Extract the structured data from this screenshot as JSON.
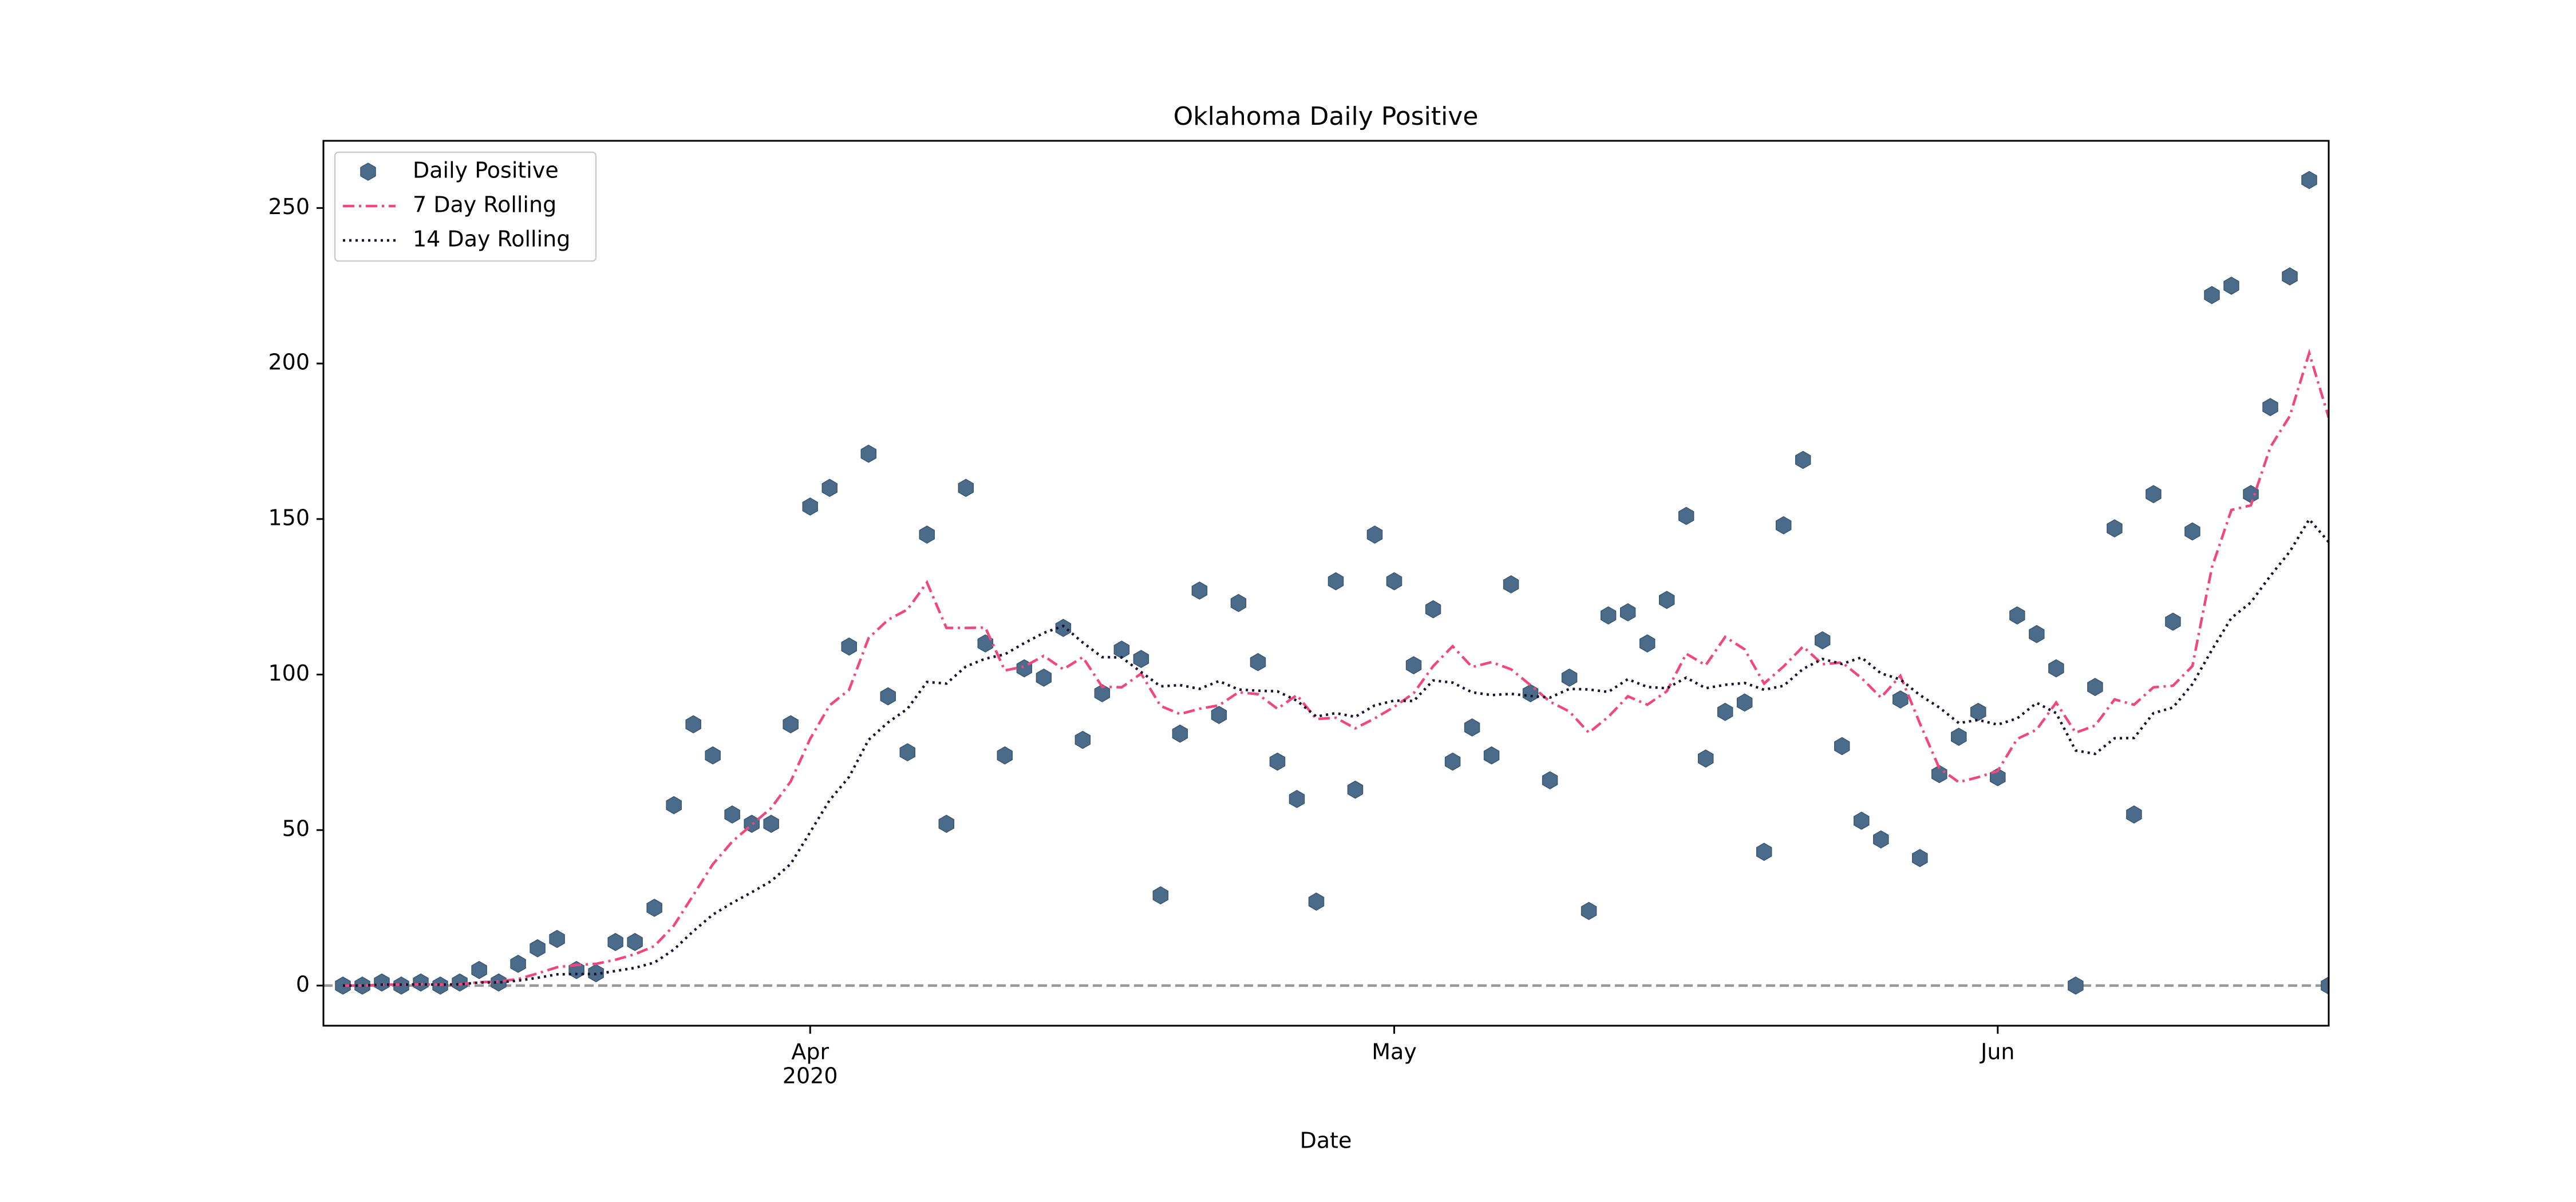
{
  "chart_data": {
    "type": "line",
    "title": "Oklahoma Daily Positive",
    "xlabel": "Date",
    "x": [
      "2020-03-08",
      "2020-03-09",
      "2020-03-10",
      "2020-03-11",
      "2020-03-12",
      "2020-03-13",
      "2020-03-14",
      "2020-03-15",
      "2020-03-16",
      "2020-03-17",
      "2020-03-18",
      "2020-03-19",
      "2020-03-20",
      "2020-03-21",
      "2020-03-22",
      "2020-03-23",
      "2020-03-24",
      "2020-03-25",
      "2020-03-26",
      "2020-03-27",
      "2020-03-28",
      "2020-03-29",
      "2020-03-30",
      "2020-03-31",
      "2020-04-01",
      "2020-04-02",
      "2020-04-03",
      "2020-04-04",
      "2020-04-05",
      "2020-04-06",
      "2020-04-07",
      "2020-04-08",
      "2020-04-09",
      "2020-04-10",
      "2020-04-11",
      "2020-04-12",
      "2020-04-13",
      "2020-04-14",
      "2020-04-15",
      "2020-04-16",
      "2020-04-17",
      "2020-04-18",
      "2020-04-19",
      "2020-04-20",
      "2020-04-21",
      "2020-04-22",
      "2020-04-23",
      "2020-04-24",
      "2020-04-25",
      "2020-04-26",
      "2020-04-27",
      "2020-04-28",
      "2020-04-29",
      "2020-04-30",
      "2020-05-01",
      "2020-05-02",
      "2020-05-03",
      "2020-05-04",
      "2020-05-05",
      "2020-05-06",
      "2020-05-07",
      "2020-05-08",
      "2020-05-09",
      "2020-05-10",
      "2020-05-11",
      "2020-05-12",
      "2020-05-13",
      "2020-05-14",
      "2020-05-15",
      "2020-05-16",
      "2020-05-17",
      "2020-05-18",
      "2020-05-19",
      "2020-05-20",
      "2020-05-21",
      "2020-05-22",
      "2020-05-23",
      "2020-05-24",
      "2020-05-25",
      "2020-05-26",
      "2020-05-27",
      "2020-05-28",
      "2020-05-29",
      "2020-05-30",
      "2020-05-31",
      "2020-06-01",
      "2020-06-02",
      "2020-06-03",
      "2020-06-04",
      "2020-06-05",
      "2020-06-06",
      "2020-06-07",
      "2020-06-08",
      "2020-06-09",
      "2020-06-10",
      "2020-06-11",
      "2020-06-12",
      "2020-06-13",
      "2020-06-14",
      "2020-06-15",
      "2020-06-16",
      "2020-06-17",
      "2020-06-18"
    ],
    "series": [
      {
        "name": "Daily Positive",
        "style": "markers",
        "color": "#4a6b8a",
        "values": [
          0,
          0,
          1,
          0,
          1,
          0,
          1,
          5,
          1,
          7,
          12,
          15,
          5,
          4,
          14,
          14,
          25,
          58,
          84,
          74,
          55,
          52,
          52,
          84,
          154,
          160,
          109,
          171,
          93,
          75,
          145,
          52,
          160,
          110,
          74,
          102,
          99,
          115,
          79,
          94,
          108,
          105,
          29,
          81,
          127,
          87,
          123,
          104,
          72,
          60,
          27,
          130,
          63,
          145,
          130,
          103,
          121,
          72,
          83,
          74,
          129,
          94,
          66,
          99,
          24,
          119,
          120,
          110,
          124,
          151,
          73,
          88,
          91,
          43,
          148,
          169,
          111,
          77,
          53,
          47,
          92,
          41,
          68,
          80,
          88,
          67,
          119,
          113,
          102,
          0,
          96,
          147,
          55,
          158,
          117,
          146,
          222,
          225,
          158,
          186,
          228,
          259,
          0
        ]
      },
      {
        "name": "7 Day Rolling",
        "style": "dashdot",
        "color": "#f0487c",
        "values": [
          0,
          0,
          0.3,
          0.3,
          0.4,
          0.3,
          0.4,
          1.1,
          1.3,
          2.1,
          3.9,
          5.9,
          6.6,
          7.0,
          8.3,
          10.1,
          12.7,
          19.3,
          29.1,
          39,
          46.3,
          51.7,
          57.1,
          65.6,
          79.3,
          90.1,
          95.1,
          111.7,
          117.6,
          120.9,
          129.6,
          115,
          115,
          115.1,
          101.3,
          102.6,
          106,
          101.7,
          105.6,
          96.1,
          95.9,
          100.3,
          89.9,
          87.3,
          89,
          90.1,
          94.3,
          93.7,
          89,
          93.4,
          85.7,
          86.1,
          82.7,
          85.9,
          89.6,
          94,
          102.7,
          109.1,
          102.4,
          104,
          101.7,
          96.6,
          91.3,
          88.1,
          81.3,
          86.4,
          93,
          90.3,
          94.6,
          106.7,
          103,
          112.1,
          108.1,
          97.1,
          102.6,
          109,
          103.3,
          103.9,
          98.9,
          92.6,
          99.6,
          84.3,
          69.9,
          65.4,
          67,
          69,
          79.3,
          82.3,
          91,
          81.3,
          83.6,
          92,
          90.3,
          95.9,
          96.4,
          102.7,
          134.4,
          152.9,
          154.4,
          173.1,
          183.1,
          203.4,
          182.6
        ]
      },
      {
        "name": "14 Day Rolling",
        "style": "dotted",
        "color": "#1c1230",
        "values": [
          0,
          0,
          0.3,
          0.3,
          0.4,
          0.3,
          0.4,
          1,
          1,
          1.6,
          2.5,
          3.6,
          3.7,
          3.7,
          4.7,
          5.7,
          7.4,
          11.6,
          17.5,
          22.8,
          26.6,
          30,
          33.6,
          39.1,
          49.3,
          59.6,
          67.1,
          79,
          84.6,
          89,
          97.6,
          97.1,
          102.6,
          105.1,
          106.5,
          110.1,
          113.4,
          115.6,
          110.3,
          105.6,
          105.5,
          100.8,
          96.2,
          96.6,
          95.4,
          97.9,
          95.2,
          94.8,
          94.6,
          91.6,
          86.5,
          87.6,
          86.4,
          90.1,
          91.6,
          91.5,
          98.1,
          97.4,
          94.3,
          93.4,
          93.8,
          93.1,
          92.6,
          95.4,
          95.2,
          94.4,
          98.5,
          96,
          95.6,
          99,
          95.6,
          96.7,
          97.3,
          95.1,
          96.4,
          101.8,
          105,
          103.4,
          105.5,
          100.4,
          98.4,
          93.4,
          89.4,
          84.4,
          85.4,
          83.9,
          85.9,
          90.9,
          87.6,
          75.6,
          74.5,
          79.5,
          79.6,
          87.6,
          89.4,
          96.9,
          107.9,
          118.2,
          123.2,
          131.7,
          139.5,
          149.9,
          142.6
        ]
      }
    ],
    "xlim": [
      "2020-03-07",
      "2020-06-18"
    ],
    "xticks": [
      {
        "value": "2020-04-01",
        "label": "Apr"
      },
      {
        "value": "2020-05-01",
        "label": "May"
      },
      {
        "value": "2020-06-01",
        "label": "Jun"
      }
    ],
    "x_year_label": "2020",
    "ylim": [
      -12.9,
      271.6
    ],
    "yticks": [
      0,
      50,
      100,
      150,
      200,
      250
    ],
    "hline": {
      "value": 0,
      "color": "#999999"
    },
    "legend": "upper left"
  }
}
